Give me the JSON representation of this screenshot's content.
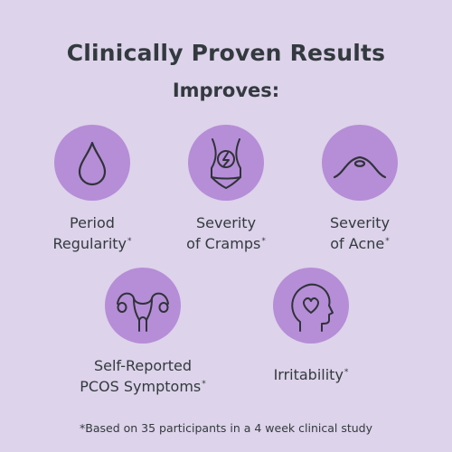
{
  "title": "Clinically Proven Results",
  "subtitle": "Improves:",
  "accent_color": "#b68dd7",
  "background_color": "#ddd3ea",
  "items": [
    {
      "icon": "water-drop-icon",
      "line1": "Period",
      "line2": "Regularity",
      "mark": "*"
    },
    {
      "icon": "torso-cramps-icon",
      "line1": "Severity",
      "line2": "of Cramps",
      "mark": "*"
    },
    {
      "icon": "skin-bump-icon",
      "line1": "Severity",
      "line2": "of Acne",
      "mark": "*"
    },
    {
      "icon": "uterus-icon",
      "line1": "Self-Reported",
      "line2": "PCOS Symptoms",
      "mark": "*"
    },
    {
      "icon": "head-heart-icon",
      "line1": "Irritability",
      "line2": "",
      "mark": "*"
    }
  ],
  "footnote": "*Based on 35 participants in a 4 week clinical study"
}
